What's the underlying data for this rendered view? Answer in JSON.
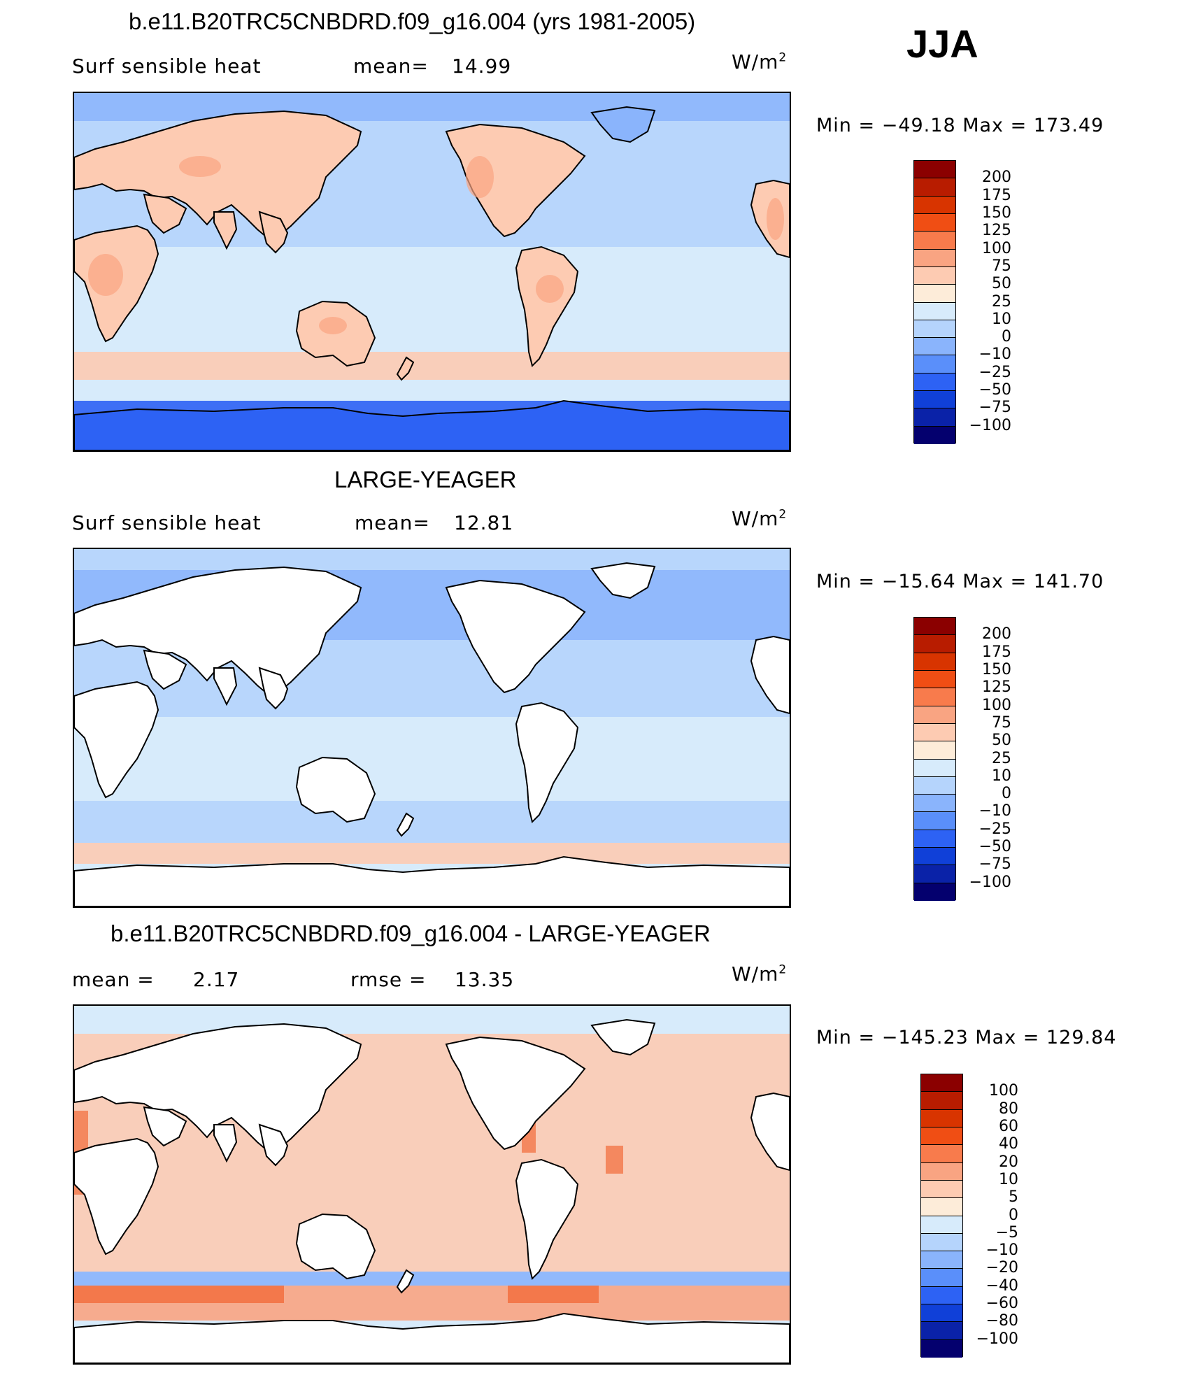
{
  "season": "JJA",
  "units_main": "W/m",
  "units_sup": "2",
  "panels": [
    {
      "title": "b.e11.B20TRC5CNBDRD.f09_g16.004 (yrs 1981-2005)",
      "left_label": "Surf  sensible  heat",
      "stat_label": "mean=",
      "stat_value": "14.99",
      "minmax": "Min  =  −49.18  Max  =  173.49",
      "land_mode": "warm",
      "colorbar_labels": [
        "200",
        "175",
        "150",
        "125",
        "100",
        "75",
        "50",
        "25",
        "10",
        "0",
        "−10",
        "−25",
        "−50",
        "−75",
        "−100"
      ]
    },
    {
      "title": "LARGE-YEAGER",
      "left_label": "Surf  sensible  heat",
      "stat_label": "mean=",
      "stat_value": "12.81",
      "minmax": "Min  =  −15.64  Max  =  141.70",
      "land_mode": "white",
      "colorbar_labels": [
        "200",
        "175",
        "150",
        "125",
        "100",
        "75",
        "50",
        "25",
        "10",
        "0",
        "−10",
        "−25",
        "−50",
        "−75",
        "−100"
      ]
    },
    {
      "title": "b.e11.B20TRC5CNBDRD.f09_g16.004 - LARGE-YEAGER",
      "left_label": "mean  =",
      "left_value": "2.17",
      "stat_label": "rmse  =",
      "stat_value": "13.35",
      "minmax": "Min  =  −145.23  Max  =  129.84",
      "land_mode": "white",
      "colorbar_labels": [
        "100",
        "80",
        "60",
        "40",
        "20",
        "10",
        "5",
        "0",
        "−5",
        "−10",
        "−20",
        "−40",
        "−60",
        "−80",
        "−100"
      ]
    }
  ],
  "colors": {
    "colorbar": [
      "#8b0000",
      "#b81c00",
      "#d83400",
      "#f04e14",
      "#f87b4c",
      "#f9a482",
      "#fdcbb2",
      "#fdecd9",
      "#d7ebfb",
      "#b5d4fc",
      "#8ab4fc",
      "#5a8ffa",
      "#2d62f4",
      "#1040d8",
      "#0a22a8",
      "#04006e"
    ],
    "ocean_light": "#d7ebfb",
    "ocean_mid": "#b5d4fc",
    "ocean_blue": "#8ab4fc",
    "deep_blue": "#2d62f4",
    "warm_light": "#fdcbb2",
    "warm_mid": "#f9a482",
    "warm_strong": "#f04e14",
    "land_white": "#ffffff"
  }
}
